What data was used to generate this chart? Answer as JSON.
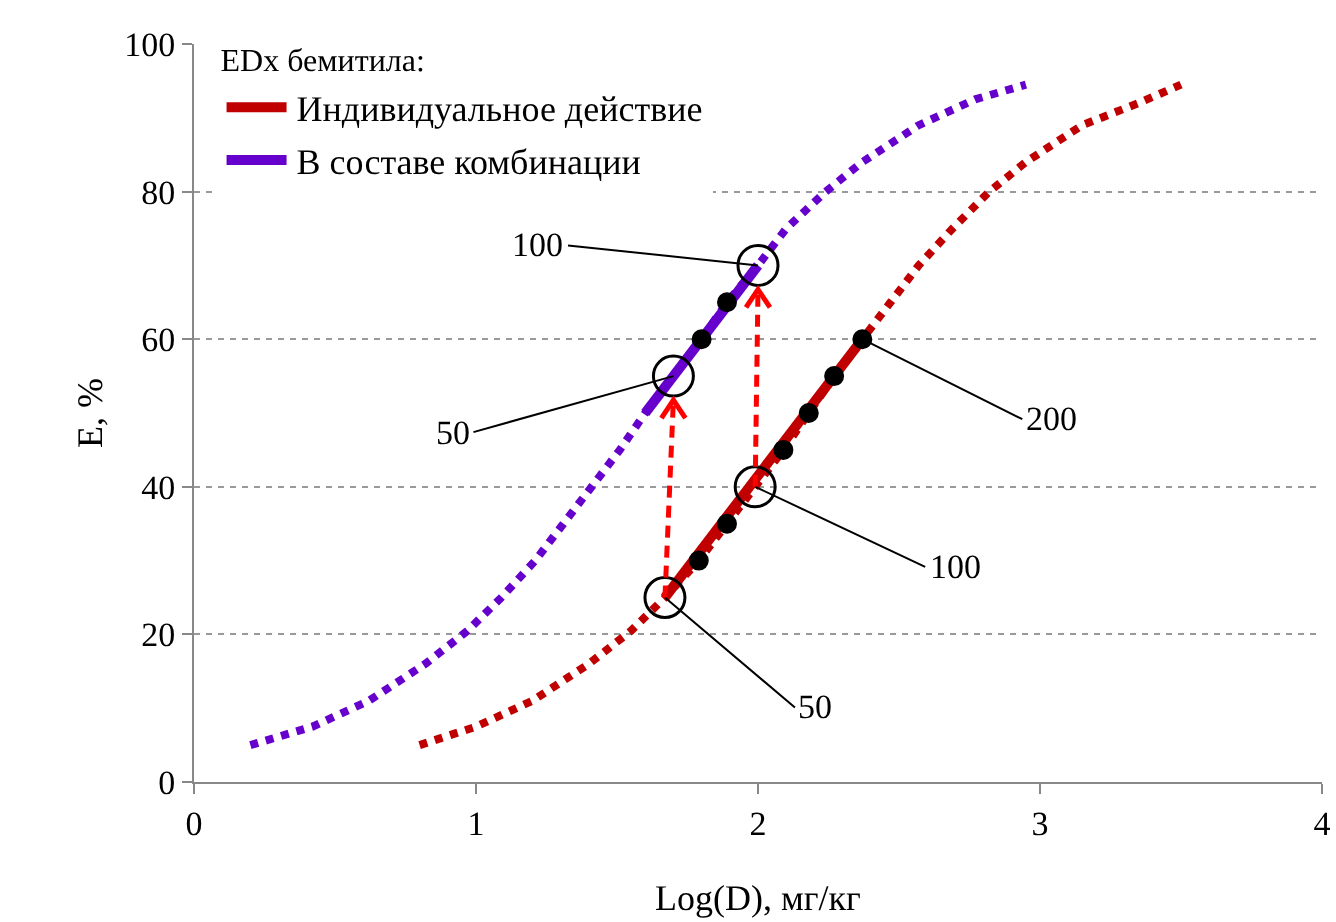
{
  "chart_data": {
    "type": "line",
    "xlabel": "Log(D), мг/кг",
    "ylabel": "E, %",
    "legend_title": "EDx бемитила:",
    "legend": "top left",
    "grid": "y",
    "xlim": [
      0,
      4
    ],
    "xticks": [
      0,
      1,
      2,
      3,
      4
    ],
    "ylim": [
      0,
      100
    ],
    "yticks": [
      0,
      20,
      40,
      60,
      80,
      100
    ],
    "series": [
      {
        "line_style": "dotted",
        "marker": "none",
        "color": "#c00000",
        "x": [
          0.8,
          1.0,
          1.2,
          1.4,
          1.55,
          1.67,
          1.79,
          1.89,
          1.99,
          2.09,
          2.18,
          2.27,
          2.37,
          2.47,
          2.57,
          2.69,
          2.82,
          2.95,
          3.15,
          3.35,
          3.5
        ],
        "values": [
          5,
          7.5,
          11,
          16,
          20.5,
          25,
          30,
          35,
          40,
          45,
          50,
          55,
          60,
          65,
          70,
          75,
          80,
          84,
          89,
          92,
          94.5
        ]
      },
      {
        "line_style": "dotted",
        "marker": "none",
        "color": "#6600cc",
        "x": [
          0.2,
          0.42,
          0.62,
          0.82,
          0.97,
          1.09,
          1.21,
          1.31,
          1.41,
          1.51,
          1.6,
          1.7,
          1.8,
          1.89,
          2.0,
          2.1,
          2.24,
          2.37,
          2.57,
          2.77,
          2.95
        ],
        "values": [
          5,
          7.5,
          11,
          16,
          20.5,
          25,
          30,
          35,
          40,
          45,
          50,
          55,
          60,
          65,
          70,
          75,
          80,
          84,
          89,
          92.5,
          94.5
        ]
      },
      {
        "name": "Индивидуальное действие",
        "line_style": "solid",
        "marker": "none",
        "color": "#c00000",
        "x": [
          1.67,
          2.37
        ],
        "values": [
          25,
          60
        ]
      },
      {
        "name": "В составе комбинации",
        "line_style": "solid",
        "marker": "none",
        "color": "#6600cc",
        "x": [
          1.6,
          2.0
        ],
        "values": [
          50,
          70
        ]
      },
      {
        "type": "scatter",
        "marker": "circle",
        "color": "#000000",
        "x": [
          1.79,
          1.89,
          2.09,
          2.18,
          2.27,
          2.37,
          1.8,
          1.89
        ],
        "values": [
          30,
          35,
          45,
          50,
          55,
          60,
          60,
          65
        ]
      },
      {
        "type": "scatter",
        "marker": "circle-open",
        "color": "#000000",
        "x": [
          1.67,
          1.99,
          1.7,
          2.0
        ],
        "values": [
          25,
          40,
          55,
          70
        ]
      }
    ],
    "annotations": [
      {
        "text": "100",
        "x": 2.0,
        "y": 70
      },
      {
        "text": "50",
        "x": 1.7,
        "y": 55
      },
      {
        "text": "50",
        "x": 1.67,
        "y": 25
      },
      {
        "text": "100",
        "x": 1.99,
        "y": 40
      },
      {
        "text": "200",
        "x": 2.37,
        "y": 60
      }
    ]
  }
}
